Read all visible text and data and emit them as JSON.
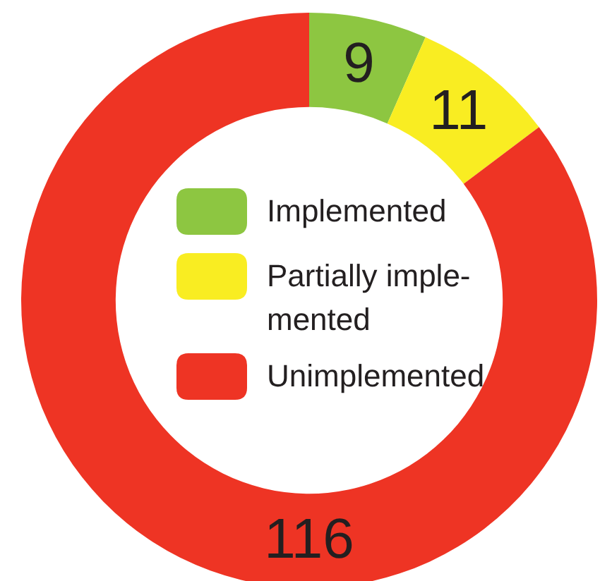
{
  "chart_data": {
    "type": "donut",
    "categories": [
      "Implemented",
      "Partially imple-\nmented",
      "Unimplemented"
    ],
    "values": [
      9,
      11,
      116
    ],
    "colors": [
      "#8dc641",
      "#f9ed22",
      "#ee3424"
    ],
    "data_labels": true,
    "legend": "center"
  }
}
